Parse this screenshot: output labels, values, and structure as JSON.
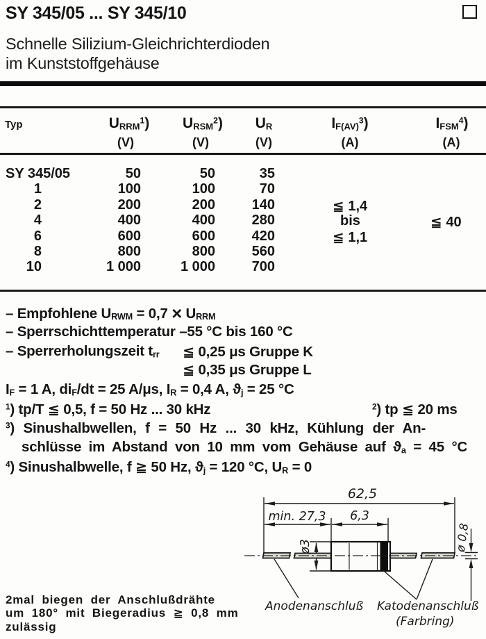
{
  "header": {
    "title": "SY 345/05 ... SY 345/10",
    "subtitle1": "Schnelle Silizium-Gleichrichterdioden",
    "subtitle2": "im Kunststoffgehäuse"
  },
  "table": {
    "col_typ": "Typ",
    "headers": {
      "urrm": [
        [
          "n",
          "U"
        ],
        [
          "sub",
          "RRM"
        ],
        [
          "sup",
          "1"
        ],
        [
          "n",
          ")"
        ]
      ],
      "ursm": [
        [
          "n",
          "U"
        ],
        [
          "sub",
          "RSM"
        ],
        [
          "sup",
          "2"
        ],
        [
          "n",
          ")"
        ]
      ],
      "ur": [
        [
          "n",
          "U"
        ],
        [
          "sub",
          "R"
        ]
      ],
      "ifav": [
        [
          "n",
          "I"
        ],
        [
          "sub",
          "F(AV)"
        ],
        [
          "sup",
          "3"
        ],
        [
          "n",
          ")"
        ]
      ],
      "ifsm": [
        [
          "n",
          "I"
        ],
        [
          "sub",
          "FSM"
        ],
        [
          "sup",
          "4"
        ],
        [
          "n",
          ")"
        ]
      ]
    },
    "units": {
      "v": "(V)",
      "a": "(A)"
    },
    "rows": [
      {
        "type": "SY 345/05",
        "urrm": "50",
        "ursm": "50",
        "ur": "35"
      },
      {
        "type": "1",
        "urrm": "100",
        "ursm": "100",
        "ur": "70"
      },
      {
        "type": "2",
        "urrm": "200",
        "ursm": "200",
        "ur": "140"
      },
      {
        "type": "4",
        "urrm": "400",
        "ursm": "400",
        "ur": "280"
      },
      {
        "type": "6",
        "urrm": "600",
        "ursm": "600",
        "ur": "420"
      },
      {
        "type": "8",
        "urrm": "800",
        "ursm": "800",
        "ur": "560"
      },
      {
        "type": "10",
        "urrm": "1 000",
        "ursm": "1 000",
        "ur": "700"
      }
    ],
    "ifav_values": [
      "≦ 1,4",
      "bis",
      "≦ 1,1"
    ],
    "ifsm_value": "≦ 40"
  },
  "notes": {
    "n1": [
      [
        "n",
        "– Empfohlene U"
      ],
      [
        "sub",
        "RWM"
      ],
      [
        "n",
        " = 0,7 "
      ],
      [
        "mult",
        "×"
      ],
      [
        "n",
        " U"
      ],
      [
        "sub",
        "RRM"
      ]
    ],
    "n2": "– Sperrschichttemperatur –55 °C bis 160 °C",
    "n3_label": [
      [
        "n",
        "– Sperrerholungszeit t"
      ],
      [
        "sub",
        "rr"
      ]
    ],
    "n3_value": "≦ 0,25 μs Gruppe K",
    "n4_value": "≦ 0,35 μs Gruppe L",
    "conditions": [
      [
        "n",
        "I"
      ],
      [
        "sub",
        "F"
      ],
      [
        "n",
        " = 1 A, di"
      ],
      [
        "sub",
        "F"
      ],
      [
        "n",
        "/dt = 25 A/μs, I"
      ],
      [
        "sub",
        "R"
      ],
      [
        "n",
        " = 0,4 A, ϑ"
      ],
      [
        "sub",
        "j"
      ],
      [
        "n",
        " = 25 °C"
      ]
    ],
    "fn1": [
      [
        "sup",
        "1"
      ],
      [
        "n",
        ") tp/T ≦ 0,5, f = 50 Hz ... 30 kHz"
      ]
    ],
    "fn2": [
      [
        "sup",
        "2"
      ],
      [
        "n",
        ") tp ≦ 20 ms"
      ]
    ],
    "fn3a": [
      [
        "sup",
        "3"
      ],
      [
        "n",
        ") Sinushalbwellen, f = 50 Hz ... 30 kHz, Kühlung der An-"
      ]
    ],
    "fn3b": [
      [
        "n",
        "schlüsse im Abstand von 10 mm vom Gehäuse auf ϑ"
      ],
      [
        "sub",
        "a"
      ],
      [
        "n",
        " = 45 °C"
      ]
    ],
    "fn4": [
      [
        "sup",
        "4"
      ],
      [
        "n",
        ") Sinushalbwelle, f ≧ 50 Hz, ϑ"
      ],
      [
        "sub",
        "j"
      ],
      [
        "n",
        " = 120 °C, U"
      ],
      [
        "sub",
        "R"
      ],
      [
        "n",
        " = 0"
      ]
    ]
  },
  "drawing": {
    "dim_total": "62,5",
    "dim_lead": "min. 27,3",
    "dim_body": "6,3",
    "dim_dia_body": "ø3",
    "dim_dia_lead": "ø 0,8",
    "label_anode": "Anodenanschluß",
    "label_cathode": "Katodenanschluß",
    "label_farbring": "(Farbring)"
  },
  "footer": {
    "line1": "2mal biegen der Anschlußdrähte",
    "line2": "um 180° mit Biegeradius ≧ 0,8 mm",
    "line3": "zulässig"
  }
}
